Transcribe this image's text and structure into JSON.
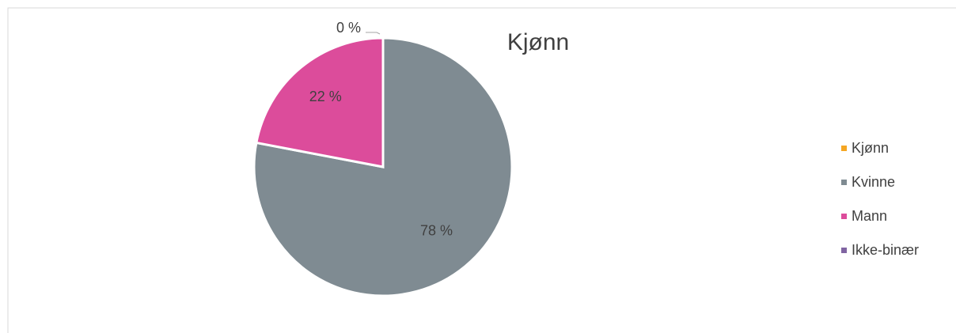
{
  "chart_data": {
    "type": "pie",
    "title": "Kjønn",
    "categories": [
      "Kjønn",
      "Kvinne",
      "Mann",
      "Ikke-binær"
    ],
    "values": [
      null,
      78,
      22,
      0
    ],
    "value_labels": [
      null,
      "78 %",
      "22 %",
      "0 %"
    ],
    "colors": [
      "#f5a623",
      "#7f8b92",
      "#dc4c9b",
      "#8064a2"
    ],
    "legend": "right"
  }
}
